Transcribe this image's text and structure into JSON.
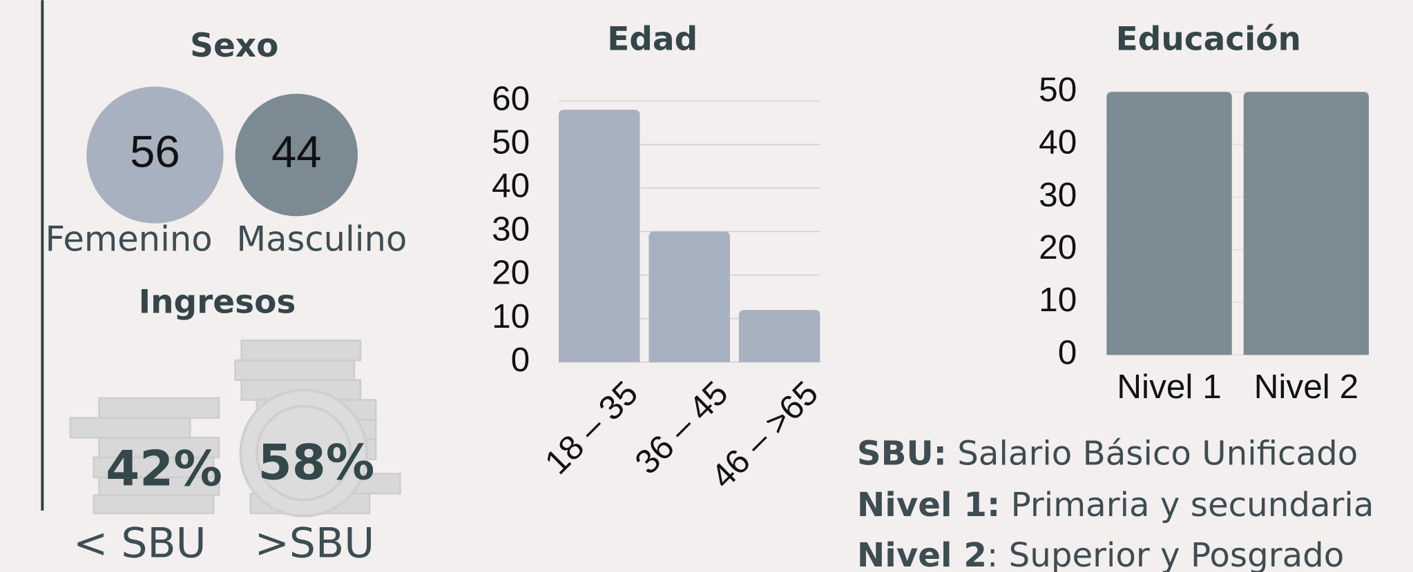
{
  "sexo": {
    "title": "Sexo",
    "items": [
      {
        "value": 56,
        "label": "Femenino"
      },
      {
        "value": 44,
        "label": "Masculino"
      }
    ]
  },
  "ingresos": {
    "title": "Ingresos",
    "items": [
      {
        "value": "42%",
        "label": "< SBU"
      },
      {
        "value": "58%",
        "label": ">SBU"
      }
    ]
  },
  "chart_data": [
    {
      "type": "bar",
      "title": "Edad",
      "categories": [
        "18 – 35",
        "36 – 45",
        "46 – >65"
      ],
      "values": [
        58,
        30,
        12
      ],
      "color": "#a8b1bf",
      "ylim": [
        0,
        60
      ],
      "yticks": [
        0,
        10,
        20,
        30,
        40,
        50,
        60
      ],
      "grid": true
    },
    {
      "type": "bar",
      "title": "Educación",
      "categories": [
        "Nivel 1",
        "Nivel 2"
      ],
      "values": [
        50,
        50
      ],
      "color": "#7b8a93",
      "ylim": [
        0,
        50
      ],
      "yticks": [
        0,
        10,
        20,
        30,
        40,
        50
      ],
      "grid": true
    }
  ],
  "notes": [
    {
      "term": "SBU:",
      "text": " Salario Básico Unificado"
    },
    {
      "term": "Nivel 1:",
      "text": " Primaria y secundaria"
    },
    {
      "term": "Nivel 2",
      "text": ": Superior y Posgrado"
    }
  ]
}
